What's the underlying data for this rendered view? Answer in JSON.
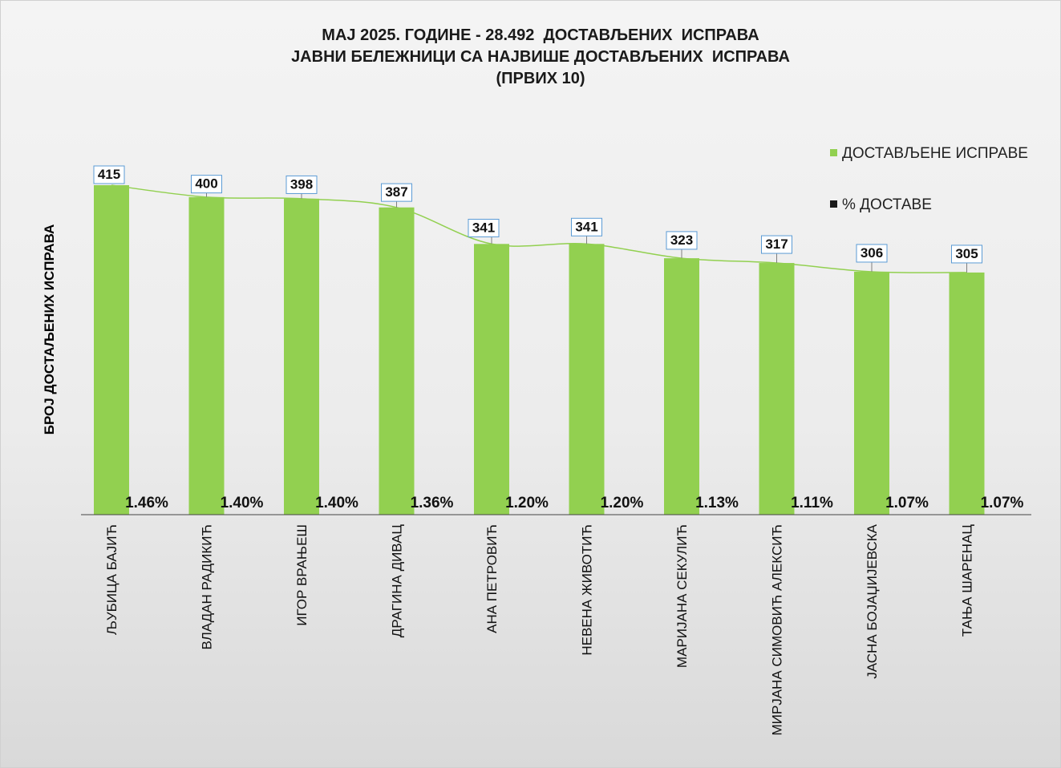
{
  "title_lines": [
    "МАЈ 2025. ГОДИНЕ - 28.492  ДОСТАВЉЕНИХ  ИСПРАВА",
    "ЈАВНИ БЕЛЕЖНИЦИ СА НАЈВИШЕ ДОСТАВЉЕНИХ  ИСПРАВА",
    "(ПРВИХ 10)"
  ],
  "chart_data": {
    "type": "bar",
    "title": "МАЈ 2025. ГОДИНЕ - 28.492  ДОСТАВЉЕНИХ  ИСПРАВА / ЈАВНИ БЕЛЕЖНИЦИ СА НАЈВИШЕ ДОСТАВЉЕНИХ  ИСПРАВА / (ПРВИХ 10)",
    "ylabel": "БРОЈ ДОСТАЉЕНИХ ИСПРАВА",
    "xlabel": "",
    "categories": [
      "ЉУБИЦА БАЈИЋ",
      "ВЛАДАН РАДИКИЋ",
      "ИГОР ВРАЊЕШ",
      "ДРАГИНА ДИВАЦ",
      "АНА ПЕТРОВИЋ",
      "НЕВЕНА ЖИВОТИЋ",
      "МАРИЈАНА СЕКУЛИЋ",
      "МИРЈАНА СИМОВИЋ АЛЕКСИЋ",
      "ЈАСНА БОЈАЏИЈЕВСКА",
      "ТАЊА ШАРЕНАЦ"
    ],
    "series": [
      {
        "name": "ДОСТАВЉЕНЕ  ИСПРАВЕ",
        "values": [
          415,
          400,
          398,
          387,
          341,
          341,
          323,
          317,
          306,
          305
        ],
        "color": "#92d050"
      },
      {
        "name": "% ДОСТАВЕ",
        "values": [
          "1.46%",
          "1.40%",
          "1.40%",
          "1.36%",
          "1.20%",
          "1.20%",
          "1.13%",
          "1.11%",
          "1.07%",
          "1.07%"
        ],
        "color": "#1a1a1a"
      }
    ],
    "ylim": [
      0,
      420
    ],
    "grid": false,
    "legend": "right",
    "trendline": true,
    "trend_color": "#92d050"
  }
}
